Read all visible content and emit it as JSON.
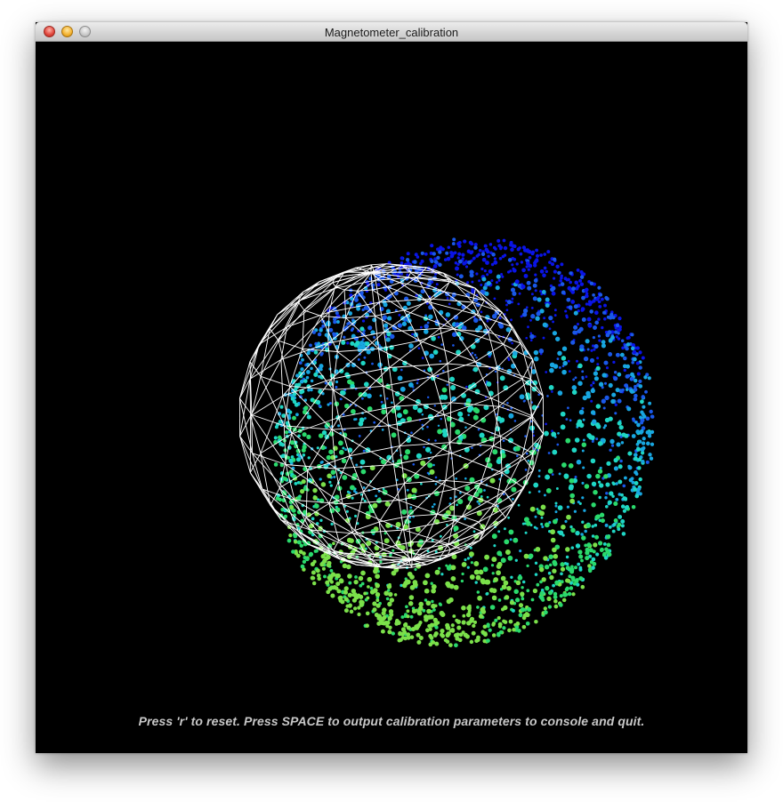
{
  "window": {
    "title": "Magnetometer_calibration"
  },
  "canvas": {
    "background": "#000000",
    "instructions": "Press 'r' to reset. Press SPACE to output calibration parameters to console and quit."
  },
  "scene": {
    "point_cloud_colors": [
      "#0a14e6",
      "#1a58e8",
      "#18a6e0",
      "#1fd6c4",
      "#2ad96c",
      "#7be04a"
    ],
    "wireframe_color": "#ffffff"
  }
}
